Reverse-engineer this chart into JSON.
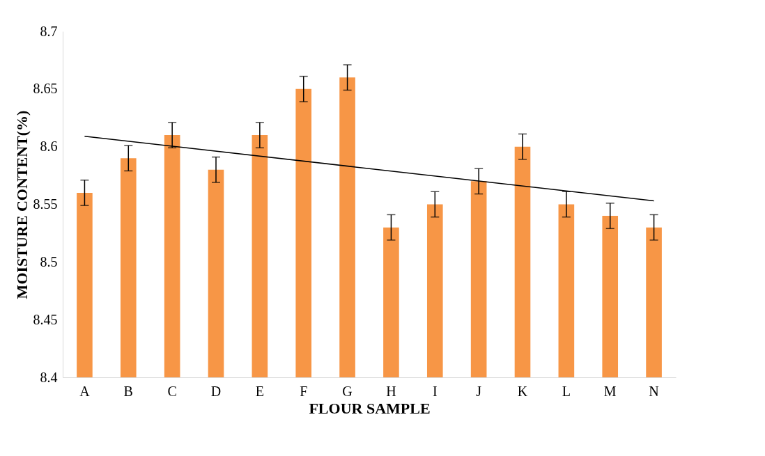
{
  "chart_data": {
    "type": "bar",
    "xlabel": "FLOUR SAMPLE",
    "ylabel": "MOISTURE CONTENT(%)",
    "categories": [
      "A",
      "B",
      "C",
      "D",
      "E",
      "F",
      "G",
      "H",
      "I",
      "J",
      "K",
      "L",
      "M",
      "N"
    ],
    "series": [
      {
        "color": "#f79646",
        "values": [
          8.56,
          8.59,
          8.61,
          8.58,
          8.61,
          8.65,
          8.66,
          8.53,
          8.55,
          8.57,
          8.6,
          8.55,
          8.54,
          8.53
        ],
        "errors": [
          0.011,
          0.011,
          0.011,
          0.011,
          0.011,
          0.011,
          0.011,
          0.011,
          0.011,
          0.011,
          0.011,
          0.011,
          0.011,
          0.011
        ]
      },
      {
        "type": "line",
        "color": "#000000",
        "x": [
          "A",
          "N"
        ],
        "values": [
          8.609,
          8.553
        ]
      }
    ],
    "ylim": [
      8.4,
      8.7
    ],
    "yticks": [
      8.4,
      8.45,
      8.5,
      8.55,
      8.6,
      8.65,
      8.7
    ],
    "grid": false
  }
}
